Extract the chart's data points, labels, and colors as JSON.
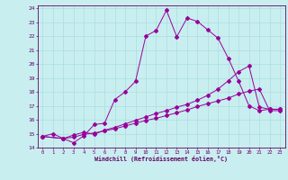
{
  "xlabel": "Windchill (Refroidissement éolien,°C)",
  "xlim": [
    -0.5,
    23.5
  ],
  "ylim": [
    14,
    24.2
  ],
  "xticks": [
    0,
    1,
    2,
    3,
    4,
    5,
    6,
    7,
    8,
    9,
    10,
    11,
    12,
    13,
    14,
    15,
    16,
    17,
    18,
    19,
    20,
    21,
    22,
    23
  ],
  "yticks": [
    14,
    15,
    16,
    17,
    18,
    19,
    20,
    21,
    22,
    23,
    24
  ],
  "bg_color": "#c8eef0",
  "grid_color": "#aadddd",
  "line_color": "#990099",
  "line1_x": [
    0,
    1,
    2,
    3,
    4,
    5,
    6,
    7,
    8,
    9,
    10,
    11,
    12,
    13,
    14,
    15,
    16,
    17,
    18,
    19,
    20,
    21,
    22,
    23
  ],
  "line1_y": [
    14.8,
    15.0,
    14.65,
    14.35,
    14.85,
    15.65,
    15.75,
    17.45,
    18.0,
    18.75,
    22.0,
    22.4,
    23.85,
    21.95,
    23.3,
    23.05,
    22.45,
    21.85,
    20.4,
    18.75,
    17.0,
    16.65,
    16.75,
    16.75
  ],
  "line2_x": [
    0,
    2,
    3,
    4,
    5,
    6,
    7,
    8,
    9,
    10,
    11,
    12,
    13,
    14,
    15,
    16,
    17,
    18,
    19,
    20,
    21,
    22,
    23
  ],
  "line2_y": [
    14.8,
    14.65,
    14.9,
    15.1,
    14.95,
    15.25,
    15.45,
    15.7,
    15.95,
    16.2,
    16.45,
    16.65,
    16.9,
    17.1,
    17.4,
    17.75,
    18.2,
    18.8,
    19.45,
    19.85,
    16.9,
    16.75,
    16.75
  ],
  "line3_x": [
    0,
    2,
    3,
    4,
    5,
    6,
    7,
    8,
    9,
    10,
    11,
    12,
    13,
    14,
    15,
    16,
    17,
    18,
    19,
    20,
    21,
    22,
    23
  ],
  "line3_y": [
    14.8,
    14.65,
    14.75,
    14.95,
    15.05,
    15.2,
    15.35,
    15.55,
    15.75,
    15.95,
    16.1,
    16.3,
    16.5,
    16.7,
    16.95,
    17.15,
    17.35,
    17.55,
    17.85,
    18.05,
    18.2,
    16.65,
    16.65
  ]
}
